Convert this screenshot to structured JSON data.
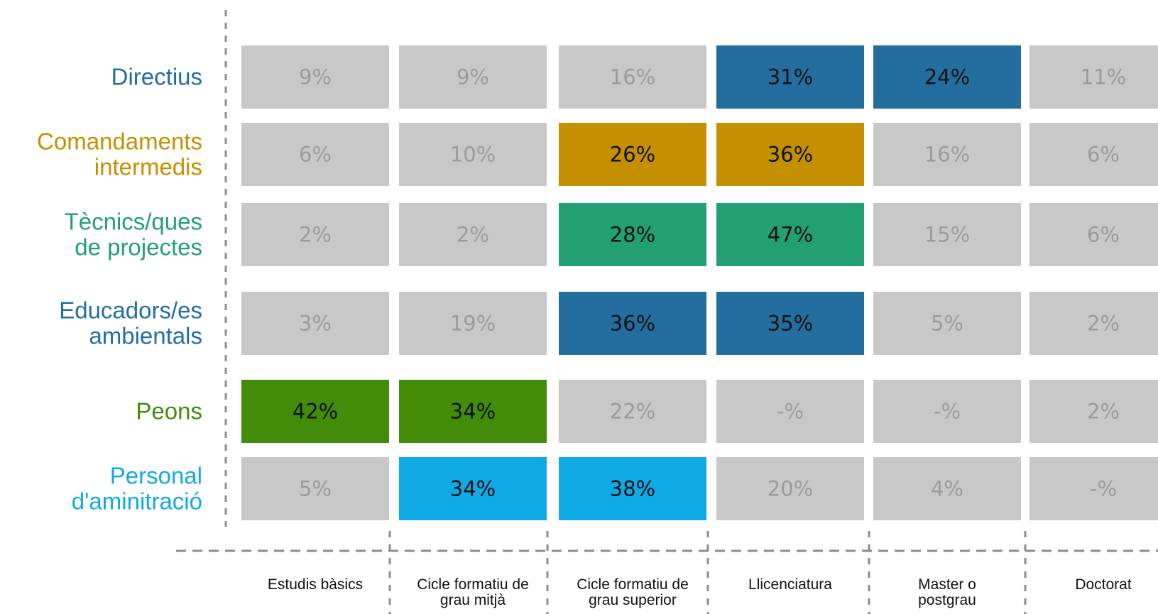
{
  "chart_data": {
    "type": "heatmap",
    "title": "",
    "xlabel": "",
    "ylabel": "",
    "rows": [
      {
        "label_lines": [
          "Directius"
        ],
        "color": "#236e9f",
        "labels": [
          "9%",
          "9%",
          "16%",
          "31%",
          "24%",
          "11%"
        ],
        "values": [
          9,
          9,
          16,
          31,
          24,
          11
        ],
        "highlight": [
          false,
          false,
          false,
          true,
          true,
          false
        ]
      },
      {
        "label_lines": [
          "Comandaments",
          "intermedis"
        ],
        "color": "#c48f00",
        "labels": [
          "6%",
          "10%",
          "26%",
          "36%",
          "16%",
          "6%"
        ],
        "values": [
          6,
          10,
          26,
          36,
          16,
          6
        ],
        "highlight": [
          false,
          false,
          true,
          true,
          false,
          false
        ]
      },
      {
        "label_lines": [
          "Tècnics/ques",
          "de projectes"
        ],
        "color": "#22a073",
        "labels": [
          "2%",
          "2%",
          "28%",
          "47%",
          "15%",
          "6%"
        ],
        "values": [
          2,
          2,
          28,
          47,
          15,
          6
        ],
        "highlight": [
          false,
          false,
          true,
          true,
          false,
          false
        ]
      },
      {
        "label_lines": [
          "Educadors/es",
          "ambientals"
        ],
        "color": "#236e9f",
        "labels": [
          "3%",
          "19%",
          "36%",
          "35%",
          "5%",
          "2%"
        ],
        "values": [
          3,
          19,
          36,
          35,
          5,
          2
        ],
        "highlight": [
          false,
          false,
          true,
          true,
          false,
          false
        ]
      },
      {
        "label_lines": [
          "Peons"
        ],
        "color": "#428c0a",
        "labels": [
          "42%",
          "34%",
          "22%",
          "-%",
          "-%",
          "2%"
        ],
        "values": [
          42,
          34,
          22,
          null,
          null,
          2
        ],
        "highlight": [
          true,
          true,
          false,
          false,
          false,
          false
        ]
      },
      {
        "label_lines": [
          "Personal",
          "d'aminitració"
        ],
        "color": "#0fa9e6",
        "labels": [
          "5%",
          "34%",
          "38%",
          "20%",
          "4%",
          "-%"
        ],
        "values": [
          5,
          34,
          38,
          20,
          4,
          null
        ],
        "highlight": [
          false,
          true,
          true,
          false,
          false,
          false
        ]
      }
    ],
    "columns": [
      {
        "label_lines": [
          "Estudis bàsics"
        ]
      },
      {
        "label_lines": [
          "Cicle formatiu de",
          "grau mitjà"
        ]
      },
      {
        "label_lines": [
          "Cicle formatiu de",
          "grau superior"
        ]
      },
      {
        "label_lines": [
          "Llicenciatura"
        ]
      },
      {
        "label_lines": [
          "Master o",
          "postgrau"
        ]
      },
      {
        "label_lines": [
          "Doctorat"
        ]
      }
    ],
    "colors": {
      "cell_default": "#c8c8c8",
      "text_default": "#9b9b9b",
      "text_highlight": "#111111",
      "divider": "#8c8c8c"
    }
  }
}
